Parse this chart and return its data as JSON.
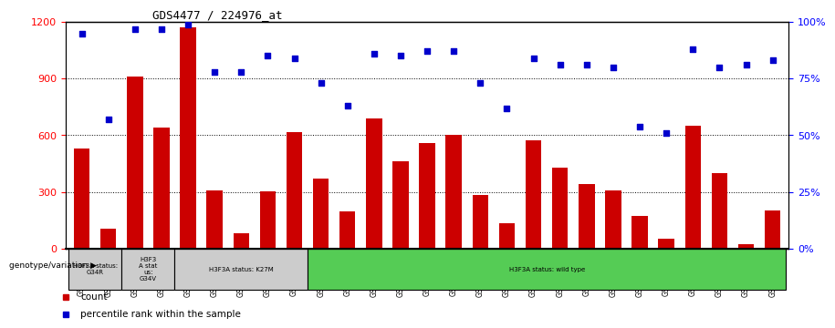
{
  "title": "GDS4477 / 224976_at",
  "samples": [
    "GSM855942",
    "GSM855943",
    "GSM855944",
    "GSM855945",
    "GSM855947",
    "GSM855957",
    "GSM855966",
    "GSM855967",
    "GSM855968",
    "GSM855946",
    "GSM855948",
    "GSM855949",
    "GSM855950",
    "GSM855951",
    "GSM855952",
    "GSM855953",
    "GSM855954",
    "GSM855955",
    "GSM855956",
    "GSM855958",
    "GSM855959",
    "GSM855960",
    "GSM855961",
    "GSM855962",
    "GSM855963",
    "GSM855964",
    "GSM855965"
  ],
  "counts": [
    530,
    105,
    910,
    640,
    1170,
    310,
    80,
    305,
    615,
    370,
    195,
    690,
    460,
    560,
    600,
    285,
    135,
    575,
    430,
    340,
    310,
    175,
    50,
    650,
    400,
    25,
    200
  ],
  "percentiles": [
    95,
    57,
    97,
    97,
    99,
    78,
    78,
    85,
    84,
    73,
    63,
    86,
    85,
    87,
    87,
    73,
    62,
    84,
    81,
    81,
    80,
    54,
    51,
    88,
    80,
    81,
    83
  ],
  "bar_color": "#cc0000",
  "dot_color": "#0000cc",
  "ylim_left": [
    0,
    1200
  ],
  "ylim_right": [
    0,
    100
  ],
  "yticks_left": [
    0,
    300,
    600,
    900,
    1200
  ],
  "yticks_right": [
    0,
    25,
    50,
    75,
    100
  ],
  "ytick_labels_right": [
    "0%",
    "25%",
    "50%",
    "75%",
    "100%"
  ],
  "groups": [
    {
      "label": "H3F3A status:\nG34R",
      "start": 0,
      "end": 2,
      "color": "#cccccc"
    },
    {
      "label": "H3F3\nA stat\nus:\nG34V",
      "start": 2,
      "end": 4,
      "color": "#cccccc"
    },
    {
      "label": "H3F3A status: K27M",
      "start": 4,
      "end": 9,
      "color": "#cccccc"
    },
    {
      "label": "H3F3A status: wild type",
      "start": 9,
      "end": 27,
      "color": "#55cc55"
    }
  ],
  "legend_label_count": "count",
  "legend_label_pct": "percentile rank within the sample",
  "annotation_label": "genotype/variation",
  "background_color": "#ffffff"
}
